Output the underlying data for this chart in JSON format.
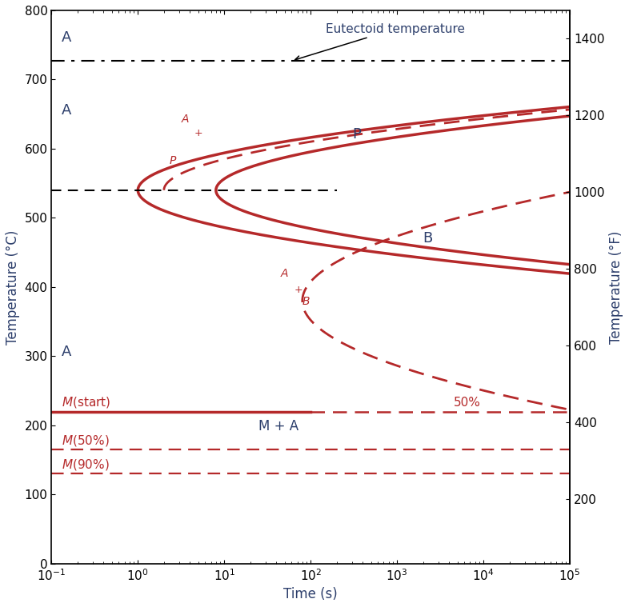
{
  "xlabel": "Time (s)",
  "ylabel_left": "Temperature (°C)",
  "ylabel_right": "Temperature (°F)",
  "xlim": [
    0.1,
    100000.0
  ],
  "ylim_C": [
    0,
    800
  ],
  "eutectoid_temp_C": 727,
  "martensite_start_C": 220,
  "martensite_50_C": 165,
  "martensite_90_C": 130,
  "background_color": "#ffffff",
  "curve_color": "#b5292a",
  "ann_color": "#2c3e6b",
  "black": "#000000"
}
